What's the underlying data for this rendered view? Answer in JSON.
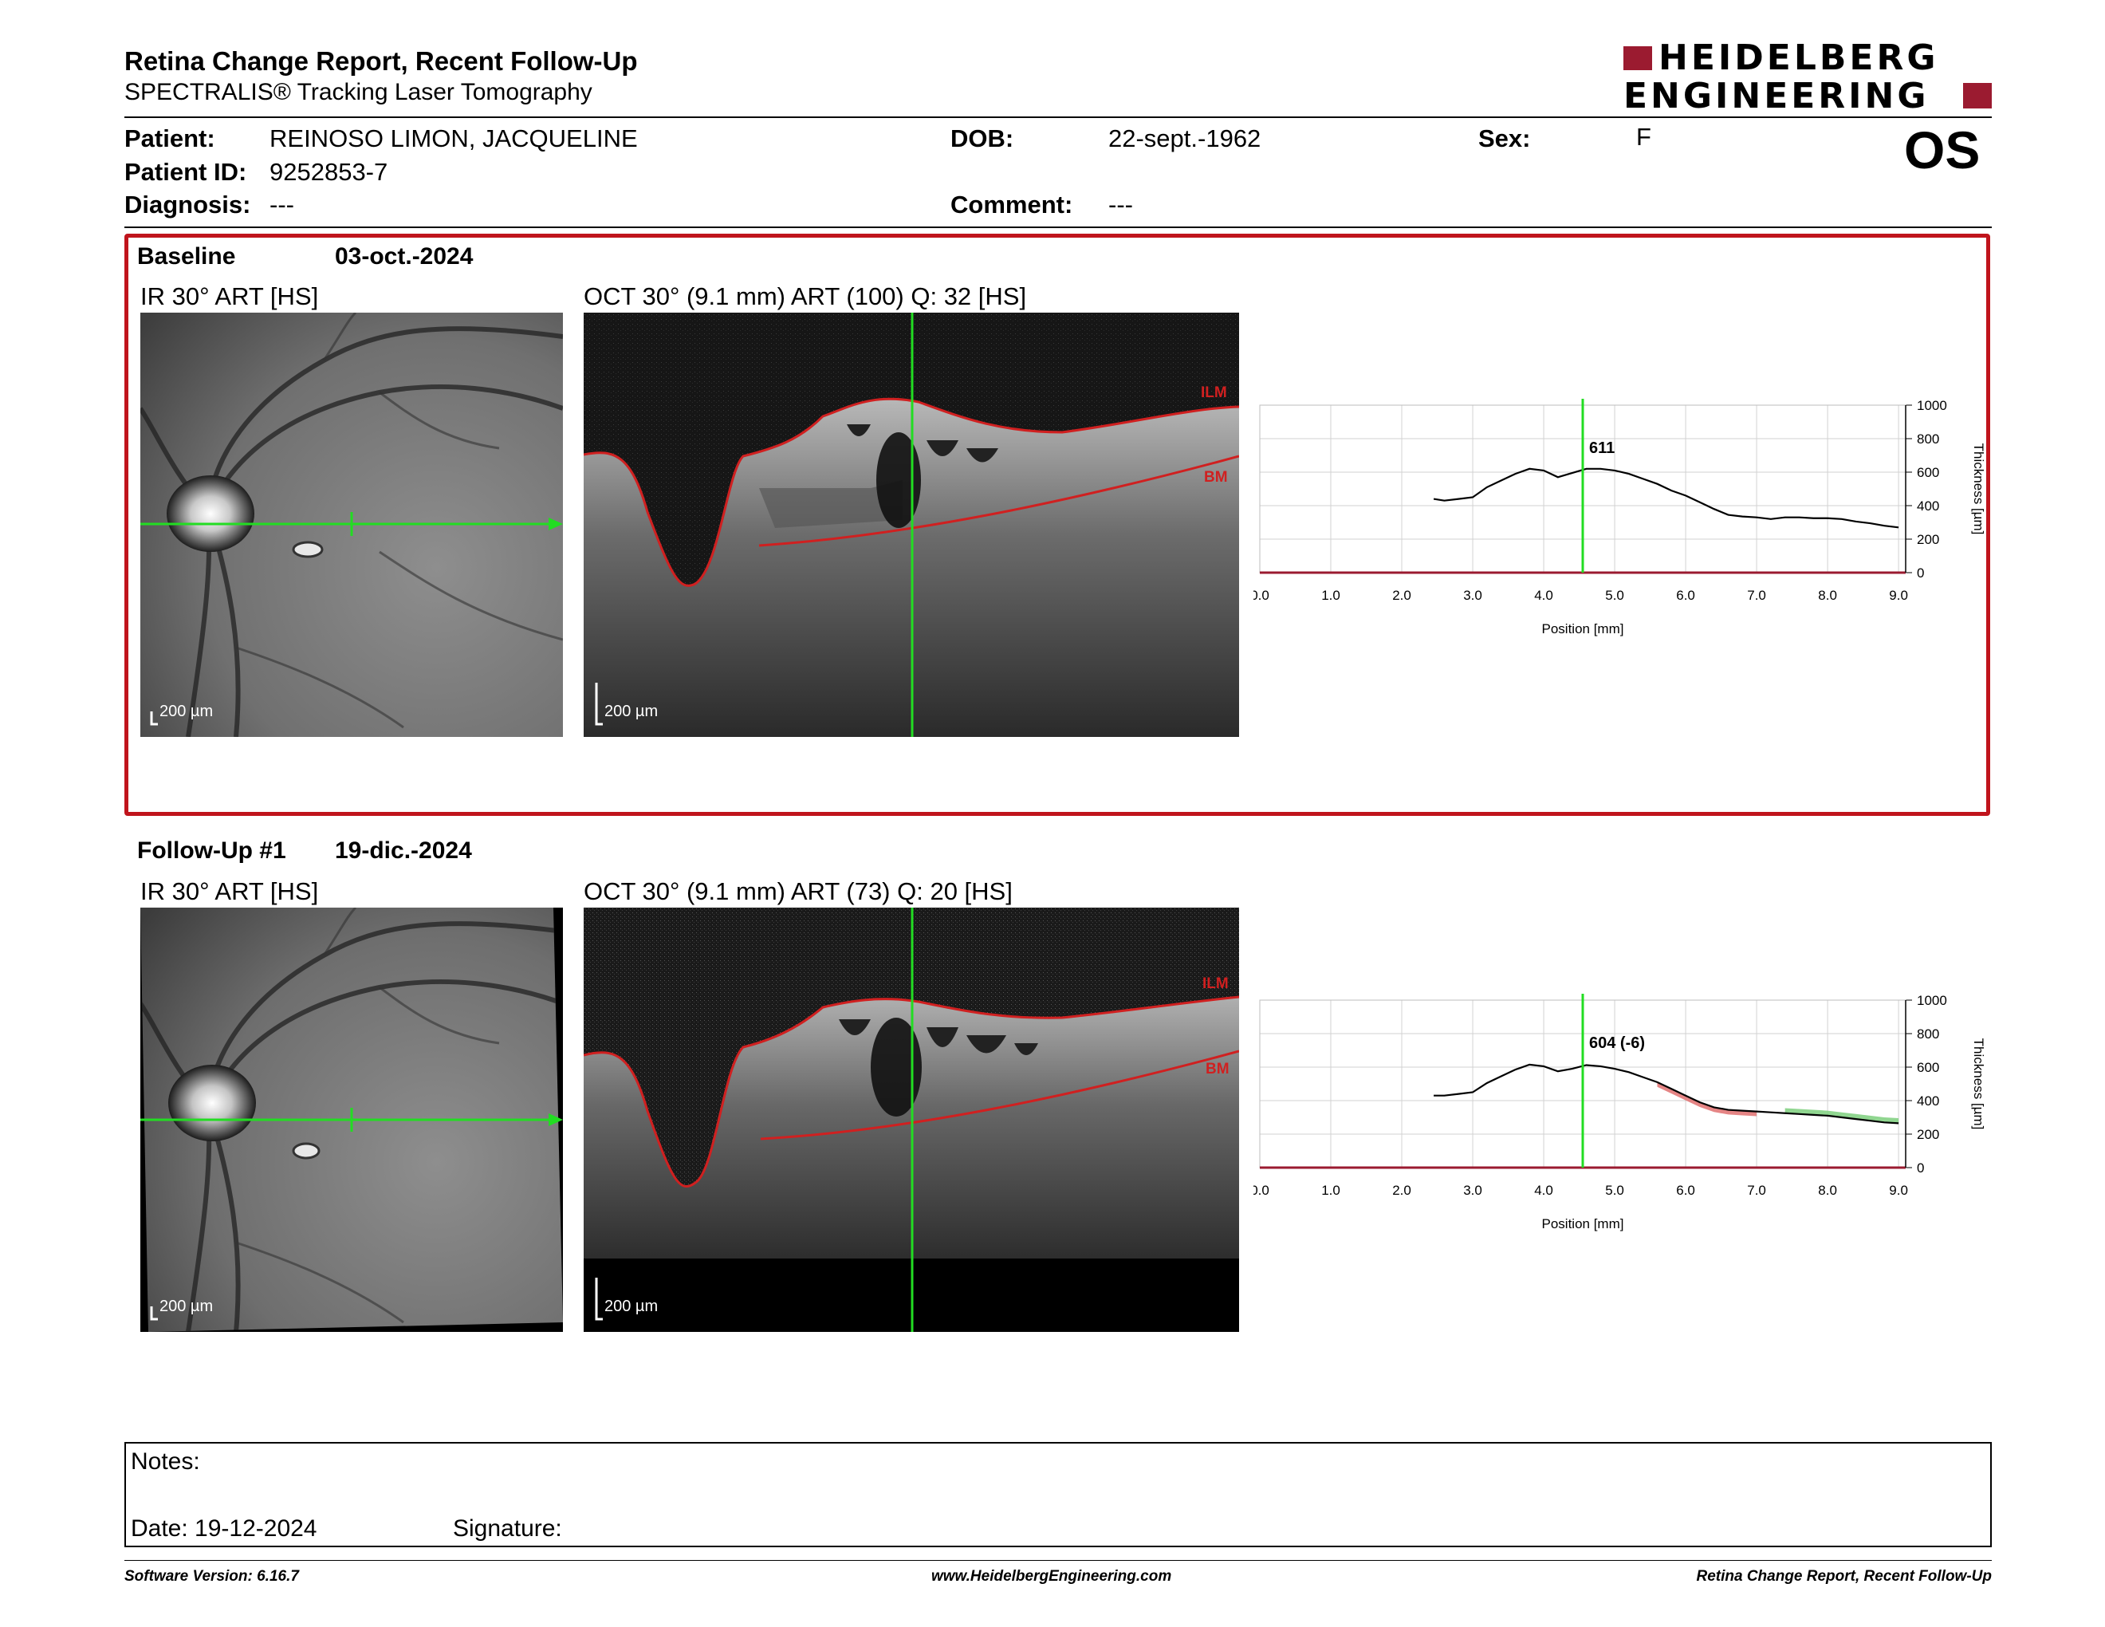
{
  "header": {
    "title": "Retina Change Report, Recent Follow-Up",
    "subtitle": "SPECTRALIS® Tracking Laser Tomography",
    "logo_line1": "HEIDELBERG",
    "logo_line2": "ENGINEERING",
    "eye": "OS"
  },
  "patient": {
    "name_label": "Patient:",
    "name": "REINOSO LIMON, JACQUELINE",
    "dob_label": "DOB:",
    "dob": "22-sept.-1962",
    "sex_label": "Sex:",
    "sex": "F",
    "id_label": "Patient ID:",
    "id": "9252853-7",
    "diagnosis_label": "Diagnosis:",
    "diagnosis": "---",
    "comment_label": "Comment:",
    "comment": "---"
  },
  "baseline": {
    "label": "Baseline",
    "date": "03-oct.-2024",
    "ir_title": "IR 30° ART [HS]",
    "oct_title": "OCT 30° (9.1 mm) ART (100) Q: 32 [HS]",
    "ir_scale": "200 µm",
    "oct_scale": "200 µm",
    "ilm": "ILM",
    "bm": "BM"
  },
  "followup": {
    "label": "Follow-Up #1",
    "date": "19-dic.-2024",
    "ir_title": "IR 30° ART [HS]",
    "oct_title": "OCT 30° (9.1 mm) ART (73) Q: 20 [HS]",
    "ir_scale": "200 µm",
    "oct_scale": "200 µm",
    "ilm": "ILM",
    "bm": "BM"
  },
  "chart_data": [
    {
      "type": "line",
      "xlabel": "Position [mm]",
      "ylabel": "Thickness [µm]",
      "xlim": [
        0,
        9.1
      ],
      "ylim": [
        0,
        1000
      ],
      "x_ticks": [
        "0.0",
        "1.0",
        "2.0",
        "3.0",
        "4.0",
        "5.0",
        "6.0",
        "7.0",
        "8.0",
        "9.0"
      ],
      "y_ticks": [
        "0",
        "200",
        "400",
        "600",
        "800",
        "1000"
      ],
      "cursor_x": 4.55,
      "cursor_label": "611",
      "grid": true,
      "series": [
        {
          "x": [
            2.45,
            2.6,
            2.8,
            3.0,
            3.2,
            3.4,
            3.6,
            3.8,
            4.0,
            4.2,
            4.4,
            4.6,
            4.8,
            5.0,
            5.2,
            5.4,
            5.6,
            5.8,
            6.0,
            6.2,
            6.4,
            6.6,
            6.8,
            7.0,
            7.2,
            7.4,
            7.6,
            7.8,
            8.0,
            8.2,
            8.4,
            8.6,
            8.8,
            9.0
          ],
          "values": [
            440,
            430,
            440,
            450,
            510,
            550,
            590,
            620,
            610,
            570,
            595,
            620,
            620,
            610,
            590,
            560,
            530,
            490,
            460,
            420,
            380,
            345,
            335,
            330,
            320,
            330,
            330,
            325,
            325,
            320,
            305,
            295,
            280,
            270
          ]
        }
      ]
    },
    {
      "type": "line",
      "xlabel": "Position [mm]",
      "ylabel": "Thickness [µm]",
      "xlim": [
        0,
        9.1
      ],
      "ylim": [
        0,
        1000
      ],
      "x_ticks": [
        "0.0",
        "1.0",
        "2.0",
        "3.0",
        "4.0",
        "5.0",
        "6.0",
        "7.0",
        "8.0",
        "9.0"
      ],
      "y_ticks": [
        "0",
        "200",
        "400",
        "600",
        "800",
        "1000"
      ],
      "cursor_x": 4.55,
      "cursor_label": "604 (-6)",
      "grid": true,
      "fill_decrease_color": "#e07070",
      "fill_increase_color": "#7ccf7c",
      "series": [
        {
          "x": [
            2.45,
            2.6,
            2.8,
            3.0,
            3.2,
            3.4,
            3.6,
            3.8,
            4.0,
            4.2,
            4.4,
            4.6,
            4.8,
            5.0,
            5.2,
            5.4,
            5.6,
            5.8,
            6.0,
            6.2,
            6.4,
            6.6,
            6.8,
            7.0,
            7.2,
            7.4,
            7.6,
            7.8,
            8.0,
            8.2,
            8.4,
            8.6,
            8.8,
            9.0
          ],
          "values": [
            430,
            430,
            440,
            450,
            505,
            545,
            585,
            615,
            605,
            575,
            590,
            612,
            605,
            590,
            570,
            540,
            510,
            470,
            430,
            390,
            360,
            345,
            340,
            335,
            330,
            325,
            320,
            315,
            310,
            300,
            290,
            280,
            270,
            265
          ]
        }
      ]
    }
  ],
  "notes": {
    "notes_label": "Notes:",
    "date_label": "Date: 19-12-2024",
    "signature_label": "Signature:"
  },
  "footer": {
    "version": "Software Version: 6.16.7",
    "website": "www.HeidelbergEngineering.com",
    "report_name": "Retina Change Report, Recent Follow-Up"
  },
  "colors": {
    "brand_red": "#9b1b30",
    "frame_red": "#c0141c",
    "cursor_green": "#22dd22",
    "layer_red": "#d02020"
  }
}
